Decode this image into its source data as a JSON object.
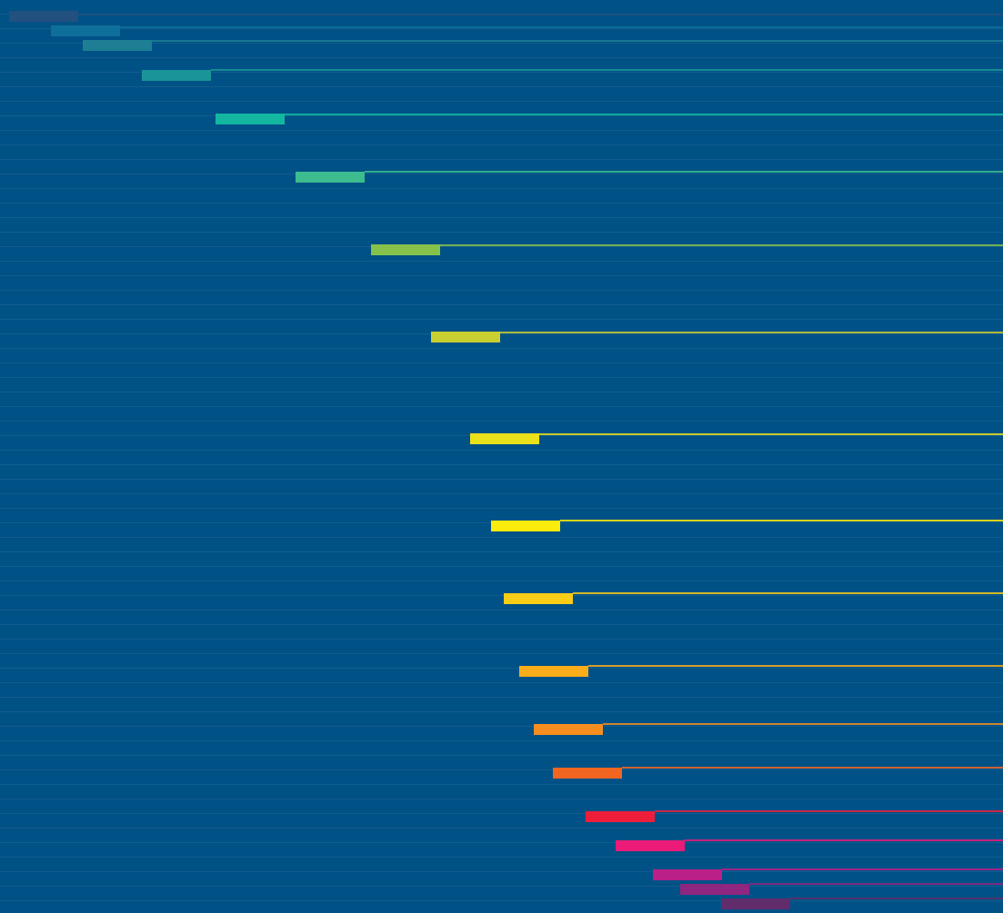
{
  "background_color": "#005186",
  "band_color": "rgba(255,255,255,0.07)",
  "palette": [
    "#22507f",
    "#0e6f9b",
    "#1e7f94",
    "#1b9497",
    "#13b7a0",
    "#3cbc8f",
    "#86c24b",
    "#c8cf2e",
    "#ebe11a",
    "#fdeb0c",
    "#fbcd16",
    "#f9ad1a",
    "#f68e1f",
    "#f16521",
    "#ee1e3b",
    "#ec1a78",
    "#bb1f88",
    "#8f2680",
    "#612c6c"
  ]
}
